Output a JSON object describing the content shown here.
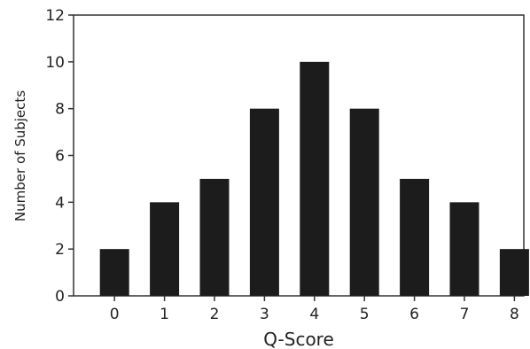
{
  "chart_data": {
    "type": "bar",
    "categories": [
      "0",
      "1",
      "2",
      "3",
      "4",
      "5",
      "6",
      "7",
      "8"
    ],
    "values": [
      2,
      4,
      5,
      8,
      10,
      8,
      5,
      4,
      2
    ],
    "xlabel": "Q-Score",
    "ylabel": "Number of Subjects",
    "ylim": [
      0,
      12
    ],
    "yticks": [
      0,
      2,
      4,
      6,
      8,
      10,
      12
    ],
    "grid": false,
    "bar_color": "#1c1c1c"
  }
}
